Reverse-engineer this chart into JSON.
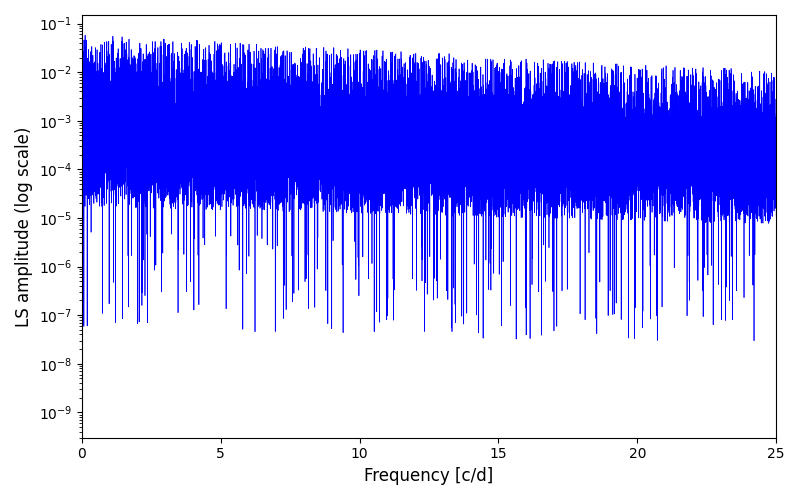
{
  "xlabel": "Frequency [c/d]",
  "ylabel": "LS amplitude (log scale)",
  "xlim": [
    0,
    25
  ],
  "ylim": [
    3e-10,
    0.15
  ],
  "line_color": "#0000FF",
  "seed": 42,
  "background_color": "#ffffff",
  "xticks": [
    0,
    5,
    10,
    15,
    20,
    25
  ],
  "figsize": [
    8.0,
    5.0
  ],
  "dpi": 100,
  "n_points": 5000,
  "freq_max": 25.0
}
